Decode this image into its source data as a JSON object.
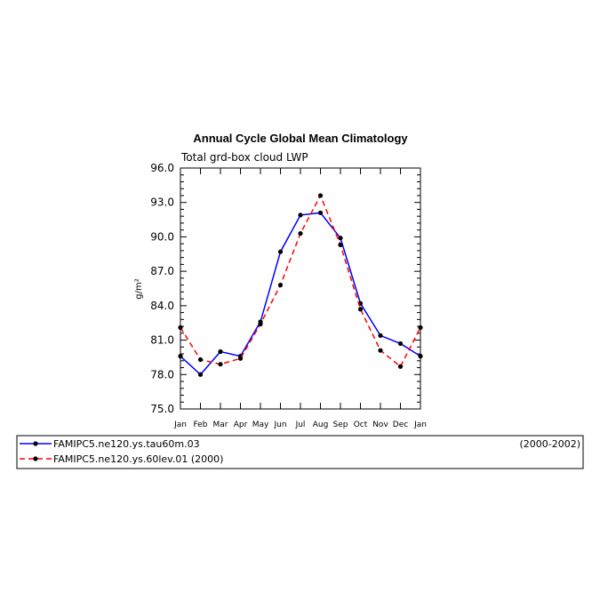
{
  "chart_data": {
    "type": "line",
    "title": "Annual Cycle Global Mean Climatology",
    "subtitle": "Total grd-box cloud LWP",
    "ylabel": "g/m²",
    "xlabel": "",
    "ylim": [
      75.0,
      96.0
    ],
    "yticks": [
      "75.0",
      "78.0",
      "81.0",
      "84.0",
      "87.0",
      "90.0",
      "93.0",
      "96.0"
    ],
    "categories": [
      "Jan",
      "Feb",
      "Mar",
      "Apr",
      "May",
      "Jun",
      "Jul",
      "Aug",
      "Sep",
      "Oct",
      "Nov",
      "Dec",
      "Jan"
    ],
    "grid": false,
    "legend_position": "bottom",
    "series": [
      {
        "name": "FAMIPC5.ne120.ys.tau60m.03",
        "period": "(2000-2002)",
        "color": "#0000ff",
        "dash": "solid",
        "values": [
          79.6,
          78.0,
          80.0,
          79.6,
          82.6,
          88.7,
          91.9,
          92.1,
          89.9,
          84.2,
          81.4,
          80.7,
          79.6
        ]
      },
      {
        "name": "FAMIPC5.ne120.ys.60lev.01 (2000)",
        "period": "",
        "color": "#ff0000",
        "dash": "dashed",
        "values": [
          82.1,
          79.3,
          78.9,
          79.4,
          82.4,
          85.8,
          90.3,
          93.6,
          89.3,
          83.7,
          80.1,
          78.7,
          82.1
        ]
      }
    ]
  }
}
